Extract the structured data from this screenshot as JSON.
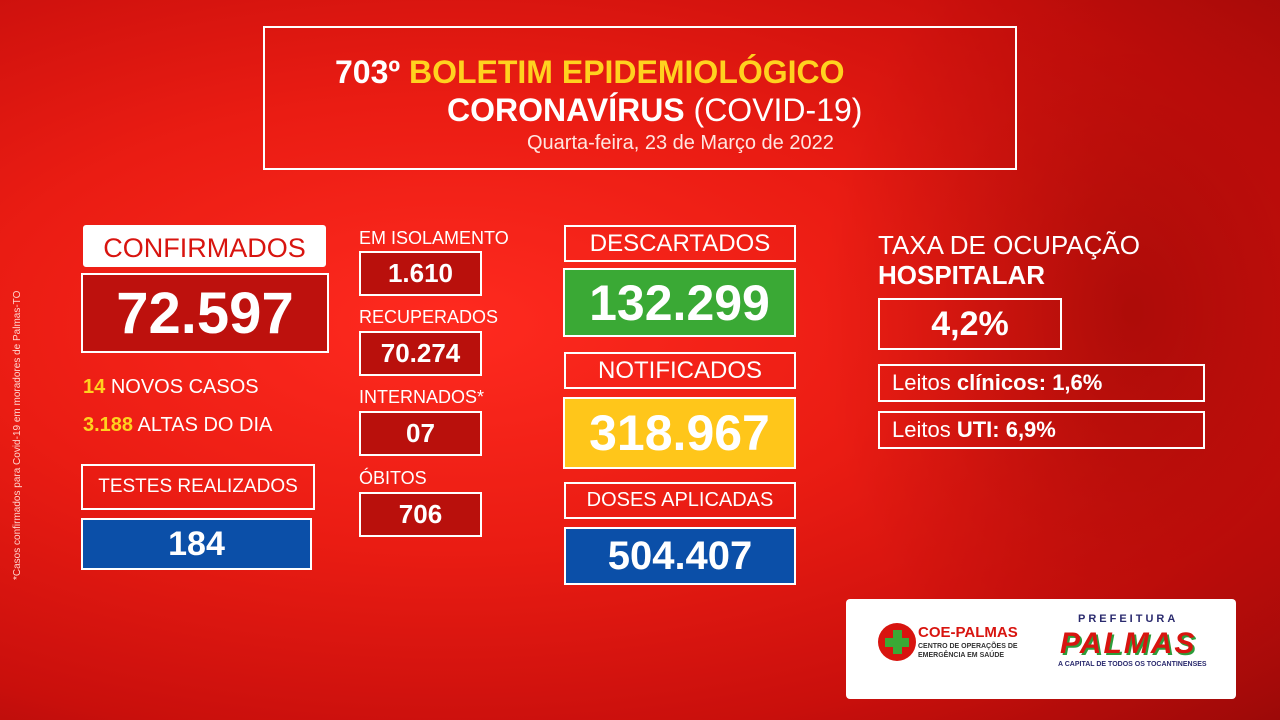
{
  "side_note": "*Casos confirmados para Covid-19 em moradores de Palmas-TO",
  "header": {
    "number": "703º",
    "title": "BOLETIM EPIDEMIOLÓGICO",
    "subtitle_bold": "CORONAVÍRUS",
    "subtitle_thin": "(COVID-19)",
    "date": "Quarta-feira, 23 de Março de 2022"
  },
  "confirmados": {
    "label": "CONFIRMADOS",
    "value": "72.597"
  },
  "novos_casos": {
    "value": "14",
    "label": "NOVOS CASOS"
  },
  "altas_dia": {
    "value": "3.188",
    "label": "ALTAS DO DIA"
  },
  "testes": {
    "label": "TESTES REALIZADOS",
    "value": "184"
  },
  "isolamento": {
    "label": "EM ISOLAMENTO",
    "value": "1.610"
  },
  "recuperados": {
    "label": "RECUPERADOS",
    "value": "70.274"
  },
  "internados": {
    "label": "INTERNADOS*",
    "value": "07"
  },
  "obitos": {
    "label": "ÓBITOS",
    "value": "706"
  },
  "descartados": {
    "label": "DESCARTADOS",
    "value": "132.299"
  },
  "notificados": {
    "label": "NOTIFICADOS",
    "value": "318.967"
  },
  "doses": {
    "label": "DOSES APLICADAS",
    "value": "504.407"
  },
  "ocupacao": {
    "title_line1": "TAXA DE OCUPAÇÃO",
    "title_line2": "HOSPITALAR",
    "value": "4,2%",
    "clinicos_label": "Leitos ",
    "clinicos_bold": "clínicos:",
    "clinicos_value": " 1,6%",
    "uti_label": "Leitos ",
    "uti_bold": "UTI:",
    "uti_value": " 6,9%"
  },
  "logos": {
    "coe_name": "COE-PALMAS",
    "coe_sub": "CENTRO DE OPERAÇÕES DE EMERGÊNCIA EM SAÚDE",
    "pref_top": "PREFEITURA",
    "pref_name": "PALMAS",
    "pref_sub": "A CAPITAL DE TODOS OS TOCANTINENSES"
  },
  "colors": {
    "background": "#ea1c13",
    "yellow": "#ffd21f",
    "green": "#3aa935",
    "blue": "#0b4fa8",
    "dark_red_box": "#b9100c"
  }
}
